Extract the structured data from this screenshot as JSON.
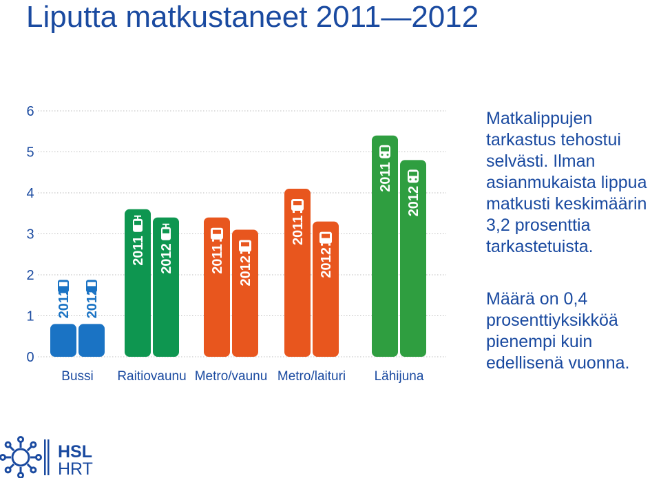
{
  "title": "Liputta matkustaneet 2011—2012",
  "paragraphs": [
    "Matkalippujen tarkastus tehostui selvästi. Ilman asianmukaista lippua matkusti keskimäärin 3,2 prosenttia tarkastetuista.",
    "Määrä on 0,4 prosenttiyksikköä pienempi kuin edellisenä vuonna."
  ],
  "logo": {
    "line1": "HSL",
    "line2": "HRT"
  },
  "colors": {
    "title": "#1a4aa0",
    "Bussi": "#1a73c4",
    "Raitiovaunu": "#0e9650",
    "Metro/vaunu": "#e8561e",
    "Metro/laituri": "#e8561e",
    "Lähijuna": "#2f9e40",
    "grid": "#bdbdbd",
    "axis_text": "#1a4aa0"
  },
  "chart_data": {
    "type": "bar",
    "categories": [
      "Bussi",
      "Raitiovaunu",
      "Metro/vaunu",
      "Metro/laituri",
      "Lähijuna"
    ],
    "series": [
      {
        "name": "2011",
        "values": [
          0.8,
          3.6,
          3.4,
          4.1,
          5.4
        ]
      },
      {
        "name": "2012",
        "values": [
          0.8,
          3.4,
          3.1,
          3.3,
          4.8
        ]
      }
    ],
    "icons": [
      "bus-icon",
      "tram-icon",
      "metro-icon",
      "metro-icon",
      "train-icon"
    ],
    "yticks": [
      0,
      1,
      2,
      3,
      4,
      5,
      6
    ],
    "ylim": [
      0,
      6
    ],
    "grid": true,
    "title": "",
    "xlabel": "",
    "ylabel": ""
  }
}
